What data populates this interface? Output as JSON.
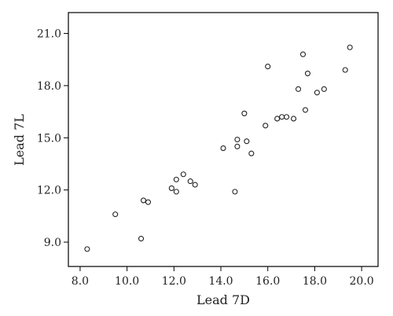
{
  "chart_data": {
    "type": "scatter",
    "title": "",
    "xlabel": "Lead 7D",
    "ylabel": "Lead 7L",
    "xlim": [
      7.5,
      20.7
    ],
    "ylim": [
      7.6,
      22.2
    ],
    "xticks": [
      "8.0",
      "10.0",
      "12.0",
      "14.0",
      "16.0",
      "18.0",
      "20.0"
    ],
    "yticks": [
      "9.0",
      "12.0",
      "15.0",
      "18.0",
      "21.0"
    ],
    "grid": false,
    "legend": "none",
    "marker": "open-circle",
    "color": "#222222",
    "points": [
      {
        "x": 8.3,
        "y": 8.6
      },
      {
        "x": 9.5,
        "y": 10.6
      },
      {
        "x": 10.6,
        "y": 9.2
      },
      {
        "x": 10.7,
        "y": 11.4
      },
      {
        "x": 10.9,
        "y": 11.3
      },
      {
        "x": 11.9,
        "y": 12.1
      },
      {
        "x": 12.1,
        "y": 11.9
      },
      {
        "x": 12.1,
        "y": 12.6
      },
      {
        "x": 12.4,
        "y": 12.9
      },
      {
        "x": 12.7,
        "y": 12.5
      },
      {
        "x": 12.9,
        "y": 12.3
      },
      {
        "x": 14.1,
        "y": 14.4
      },
      {
        "x": 14.6,
        "y": 11.9
      },
      {
        "x": 14.7,
        "y": 14.5
      },
      {
        "x": 14.7,
        "y": 14.9
      },
      {
        "x": 15.0,
        "y": 16.4
      },
      {
        "x": 15.1,
        "y": 14.8
      },
      {
        "x": 15.3,
        "y": 14.1
      },
      {
        "x": 15.9,
        "y": 15.7
      },
      {
        "x": 16.0,
        "y": 19.1
      },
      {
        "x": 16.4,
        "y": 16.1
      },
      {
        "x": 16.6,
        "y": 16.2
      },
      {
        "x": 16.8,
        "y": 16.2
      },
      {
        "x": 17.1,
        "y": 16.1
      },
      {
        "x": 17.3,
        "y": 17.8
      },
      {
        "x": 17.5,
        "y": 19.8
      },
      {
        "x": 17.6,
        "y": 16.6
      },
      {
        "x": 17.7,
        "y": 18.7
      },
      {
        "x": 18.1,
        "y": 17.6
      },
      {
        "x": 18.4,
        "y": 17.8
      },
      {
        "x": 19.3,
        "y": 18.9
      },
      {
        "x": 19.5,
        "y": 20.2
      }
    ]
  }
}
